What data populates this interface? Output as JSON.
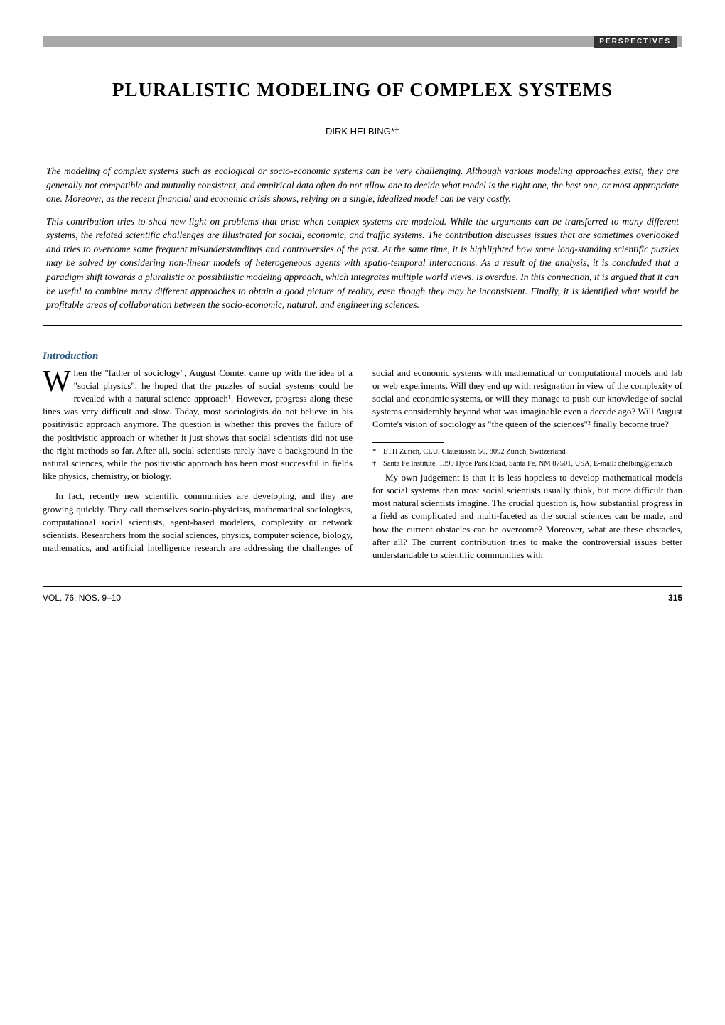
{
  "banner": {
    "label": "PERSPECTIVES"
  },
  "article": {
    "title": "PLURALISTIC MODELING OF COMPLEX SYSTEMS",
    "author": "DIRK HELBING*†"
  },
  "abstract": {
    "para1": "The modeling of complex systems such as ecological or socio-economic systems can be very challenging. Although various modeling approaches exist, they are generally not compatible and mutually consistent, and empirical data often do not allow one to decide what model is the right one, the best one, or most appropriate one. Moreover, as the recent financial and economic crisis shows, relying on a single, idealized model can be very costly.",
    "para2": "This contribution tries to shed new light on problems that arise when complex systems are modeled. While the arguments can be transferred to many different systems, the related scientific challenges are illustrated for social, economic, and traffic systems. The contribution discusses issues that are sometimes overlooked and tries to overcome some frequent misunderstandings and controversies of the past. At the same time, it is highlighted how some long-standing scientific puzzles may be solved by considering non-linear models of heterogeneous agents with spatio-temporal interactions. As a result of the analysis, it is concluded that a paradigm shift towards a pluralistic or possibilistic modeling approach, which integrates multiple world views, is overdue. In this connection, it is argued that it can be useful to combine many different approaches to obtain a good picture of reality, even though they may be inconsistent. Finally, it is identified what would be profitable areas of collaboration between the socio-economic, natural, and engineering sciences."
  },
  "sections": {
    "introduction": {
      "heading": "Introduction",
      "dropCap": "W",
      "para1_rest": "hen the \"father of sociology\", August Comte, came up with the idea of a \"social physics\", he hoped that the puzzles of social systems could be revealed with a natural science approach¹. However, progress along these lines was very difficult and slow. Today, most sociologists do not believe in his positivistic approach anymore. The question is whether this proves the failure of the positivistic approach or whether it just shows that social scientists did not use the right methods so far. After all, social scientists rarely have a background in the natural sciences, while the positivistic approach has been most successful in fields like physics, chemistry, or biology.",
      "para2": "In fact, recently new scientific communities are developing, and they are growing quickly. They call themselves socio-physicists, mathematical sociologists, computational social scientists, agent-based modelers, complexity or network scientists. Researchers from the social sciences, physics, computer science, biology, mathematics, and artificial intelligence research are addressing the challenges of social and economic systems with mathematical or computational models and lab or web experiments. Will they end up with resignation in view of the complexity of social and economic systems, or will they manage to push our knowledge of social systems considerably beyond what was imaginable even a decade ago? Will August Comte's vision of sociology as \"the queen of the sciences\"² finally become true?",
      "para3": "My own judgement is that it is less hopeless to develop mathematical models for social systems than most social scientists usually think, but more difficult than most natural scientists imagine. The crucial question is, how substantial progress in a field as complicated and multi-faceted as the social sciences can be made, and how the current obstacles can be overcome? Moreover, what are these obstacles, after all? The current contribution tries to make the controversial issues better understandable to scientific communities with"
    }
  },
  "footnotes": {
    "note1_marker": "*",
    "note1_text": "ETH Zurich, CLU, Clausiusstr. 50, 8092 Zurich, Switzerland",
    "note2_marker": "†",
    "note2_text": "Santa Fe Institute, 1399 Hyde Park Road, Santa Fe, NM 87501, USA, E-mail: dhelbing@ethz.ch"
  },
  "footer": {
    "volume": "VOL. 76, NOS. 9–10",
    "page": "315"
  },
  "colors": {
    "bannerGray": "#a8a8a8",
    "headingBlue": "#2a5a8a",
    "text": "#000000",
    "background": "#ffffff"
  }
}
